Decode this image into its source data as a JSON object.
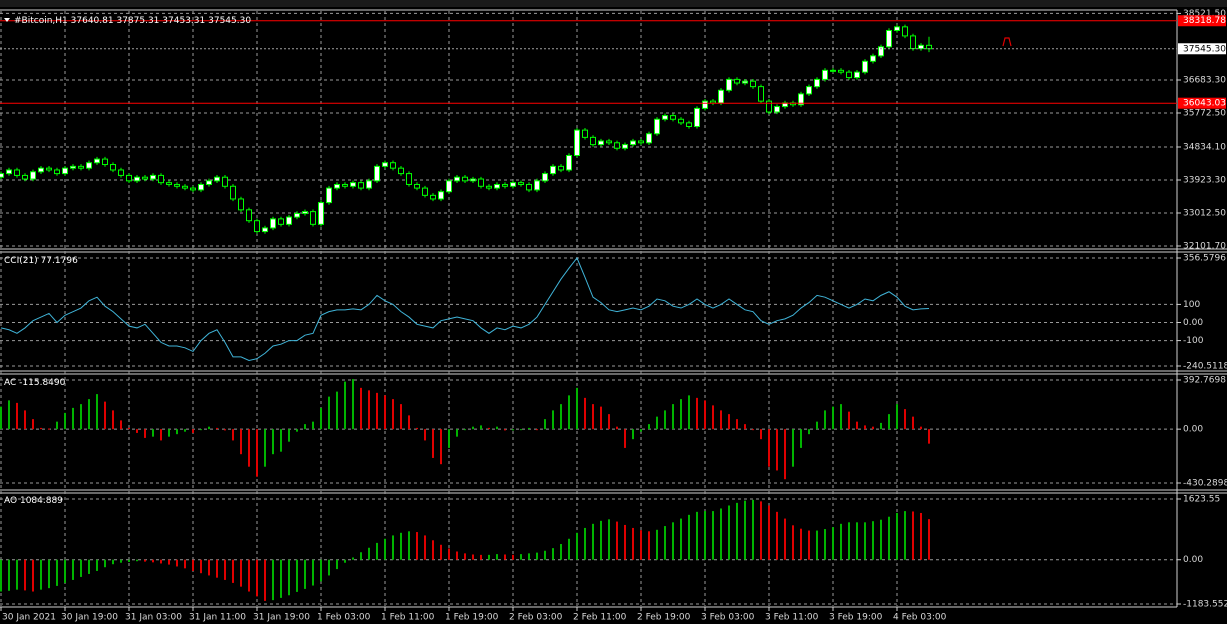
{
  "chart_data": [
    {
      "type": "candlestick",
      "title": "#Bitcoin,H1",
      "categories": [
        "30 Jan 2021",
        null,
        null,
        null,
        null,
        null,
        null,
        null,
        "30 Jan 19:00",
        null,
        null,
        null,
        null,
        null,
        null,
        null,
        "31 Jan 03:00",
        null,
        null,
        null,
        null,
        null,
        null,
        null,
        "31 Jan 11:00",
        null,
        null,
        null,
        null,
        null,
        null,
        null,
        "31 Jan 19:00",
        null,
        null,
        null,
        null,
        null,
        null,
        null,
        "1 Feb 03:00",
        null,
        null,
        null,
        null,
        null,
        null,
        null,
        "1 Feb 11:00",
        null,
        null,
        null,
        null,
        null,
        null,
        null,
        "1 Feb 19:00",
        null,
        null,
        null,
        null,
        null,
        null,
        null,
        "2 Feb 03:00",
        null,
        null,
        null,
        null,
        null,
        null,
        null,
        "2 Feb 11:00",
        null,
        null,
        null,
        null,
        null,
        null,
        null,
        "2 Feb 19:00",
        null,
        null,
        null,
        null,
        null,
        null,
        null,
        "3 Feb 03:00",
        null,
        null,
        null,
        null,
        null,
        null,
        null,
        "3 Feb 11:00",
        null,
        null,
        null,
        null,
        null,
        null,
        null,
        "3 Feb 19:00",
        null,
        null,
        null,
        null,
        null,
        null,
        null,
        "4 Feb 03:00",
        null,
        null,
        null,
        null
      ],
      "open": [
        34000,
        34100,
        34200,
        34050,
        33950,
        34150,
        34250,
        34200,
        34100,
        34250,
        34300,
        34250,
        34400,
        34500,
        34350,
        34200,
        34050,
        33900,
        34000,
        33950,
        34050,
        33850,
        33800,
        33750,
        33700,
        33650,
        33800,
        33900,
        34000,
        33750,
        33400,
        33100,
        32800,
        32500,
        32600,
        32850,
        32700,
        32900,
        33000,
        33050,
        32700,
        33300,
        33700,
        33800,
        33750,
        33850,
        33700,
        33900,
        34300,
        34400,
        34250,
        34100,
        33800,
        33700,
        33500,
        33400,
        33600,
        33900,
        34000,
        33900,
        33950,
        33750,
        33700,
        33800,
        33750,
        33850,
        33800,
        33650,
        33900,
        34100,
        34300,
        34200,
        34600,
        35300,
        35100,
        34900,
        35000,
        34950,
        34800,
        34900,
        35000,
        34950,
        35200,
        35600,
        35700,
        35600,
        35500,
        35400,
        35900,
        36100,
        36050,
        36400,
        36700,
        36600,
        36650,
        36500,
        36100,
        35800,
        35950,
        36050,
        36000,
        36300,
        36500,
        36700,
        36950,
        36950,
        36900,
        36750,
        36900,
        37200,
        37350,
        37600,
        38050,
        38150,
        37900,
        37550,
        37640.81
      ],
      "high": [
        34160,
        34260,
        34260,
        34110,
        34210,
        34310,
        34310,
        34260,
        34310,
        34360,
        34360,
        34460,
        34560,
        34560,
        34410,
        34260,
        34110,
        34060,
        34060,
        34110,
        34110,
        33910,
        33860,
        33810,
        33760,
        33860,
        33960,
        34060,
        34060,
        33810,
        33460,
        33160,
        32860,
        32660,
        32910,
        32910,
        32960,
        33060,
        33110,
        33110,
        33360,
        33760,
        33860,
        33860,
        33910,
        33910,
        33960,
        34360,
        34460,
        34460,
        34310,
        34160,
        33860,
        33760,
        33560,
        33660,
        33960,
        34060,
        34060,
        34010,
        34010,
        33810,
        33860,
        33860,
        33910,
        33910,
        33860,
        33960,
        34160,
        34360,
        34360,
        34660,
        35360,
        35360,
        35160,
        35060,
        35060,
        35010,
        34960,
        35060,
        35060,
        35260,
        35660,
        35760,
        35760,
        35660,
        35560,
        35960,
        36160,
        36160,
        36460,
        36760,
        36760,
        36710,
        36710,
        36560,
        36160,
        36010,
        36110,
        36110,
        36360,
        36560,
        36760,
        37010,
        37010,
        37010,
        36960,
        36960,
        37260,
        37410,
        37660,
        38110,
        38210,
        38210,
        37960,
        37700,
        37875.31
      ],
      "low": [
        33940,
        34040,
        33990,
        33890,
        33890,
        34090,
        34140,
        34040,
        34040,
        34190,
        34190,
        34190,
        34340,
        34290,
        34140,
        33990,
        33840,
        33840,
        33890,
        33890,
        33790,
        33740,
        33690,
        33640,
        33590,
        33590,
        33740,
        33840,
        33690,
        33340,
        33040,
        32740,
        32440,
        32440,
        32540,
        32640,
        32640,
        32840,
        32940,
        32640,
        32640,
        33240,
        33640,
        33690,
        33690,
        33640,
        33640,
        33840,
        34240,
        34190,
        34040,
        33740,
        33640,
        33440,
        33340,
        33340,
        33540,
        33840,
        33840,
        33840,
        33690,
        33640,
        33640,
        33690,
        33690,
        33740,
        33590,
        33590,
        33840,
        34040,
        34140,
        34140,
        34540,
        35040,
        34840,
        34840,
        34890,
        34740,
        34740,
        34840,
        34890,
        34890,
        35140,
        35540,
        35540,
        35440,
        35340,
        35340,
        35840,
        35990,
        35990,
        36340,
        36540,
        36540,
        36440,
        36040,
        35740,
        35740,
        35890,
        35940,
        35940,
        36240,
        36440,
        36640,
        36890,
        36840,
        36690,
        36690,
        36840,
        37140,
        37290,
        37540,
        37990,
        37840,
        37490,
        37490,
        37453.31
      ],
      "close": [
        34100,
        34200,
        34050,
        33950,
        34150,
        34250,
        34200,
        34100,
        34250,
        34300,
        34250,
        34400,
        34500,
        34350,
        34200,
        34050,
        33900,
        34000,
        33950,
        34050,
        33850,
        33800,
        33750,
        33700,
        33650,
        33800,
        33900,
        34000,
        33750,
        33400,
        33100,
        32800,
        32500,
        32600,
        32850,
        32700,
        32900,
        33000,
        33050,
        32700,
        33300,
        33700,
        33800,
        33750,
        33850,
        33700,
        33900,
        34300,
        34400,
        34250,
        34100,
        33800,
        33700,
        33500,
        33400,
        33600,
        33900,
        34000,
        33900,
        33950,
        33750,
        33700,
        33800,
        33750,
        33850,
        33800,
        33650,
        33900,
        34100,
        34300,
        34200,
        34600,
        35300,
        35100,
        34900,
        35000,
        34950,
        34800,
        34900,
        35000,
        34950,
        35200,
        35600,
        35700,
        35600,
        35500,
        35400,
        35900,
        36100,
        36050,
        36400,
        36700,
        36600,
        36650,
        36500,
        36100,
        35800,
        35950,
        36050,
        36000,
        36300,
        36500,
        36700,
        36950,
        36950,
        36900,
        36750,
        36900,
        37200,
        37350,
        37600,
        38050,
        38150,
        37900,
        37550,
        37640.81,
        37545.3
      ],
      "current_price": {
        "value": 37545.3,
        "label": "37545.30"
      },
      "levels": [
        {
          "value": 38318.78,
          "label": "38318.78",
          "color": "#ff0000"
        },
        {
          "value": 36043.03,
          "label": "36043.03",
          "color": "#ff0000"
        }
      ],
      "color": "#00ff00",
      "up_fill": "#ffffff",
      "down_fill": "#000000",
      "ylim": [
        32046.5,
        38587.7
      ],
      "yticks": [
        {
          "value": 38521.5,
          "label": "38521.50"
        },
        {
          "value": 36683.3,
          "label": "36683.30"
        },
        {
          "value": 35772.5,
          "label": "35772.50"
        },
        {
          "value": 34834.1,
          "label": "34834.10"
        },
        {
          "value": 33923.3,
          "label": "33923.30"
        },
        {
          "value": 33012.5,
          "label": "33012.50"
        },
        {
          "value": 32101.7,
          "label": "32101.70"
        }
      ],
      "grid": true
    },
    {
      "type": "line",
      "title": "CCI(21)",
      "color": "#40b4d8",
      "values": [
        -30,
        -40,
        -60,
        -30,
        10,
        30,
        50,
        0,
        40,
        60,
        80,
        120,
        140,
        90,
        60,
        20,
        -20,
        -30,
        -10,
        -60,
        -110,
        -130,
        -130,
        -140,
        -160,
        -100,
        -60,
        -40,
        -110,
        -190,
        -190,
        -210,
        -200,
        -170,
        -130,
        -120,
        -100,
        -100,
        -70,
        -60,
        40,
        60,
        70,
        70,
        75,
        70,
        100,
        150,
        120,
        100,
        60,
        30,
        -10,
        -20,
        -30,
        10,
        20,
        30,
        20,
        10,
        -30,
        -60,
        -30,
        -40,
        -20,
        -30,
        -10,
        30,
        100,
        170,
        240,
        300,
        356.58,
        250,
        140,
        110,
        70,
        60,
        70,
        80,
        70,
        90,
        130,
        120,
        90,
        80,
        100,
        130,
        100,
        80,
        100,
        130,
        100,
        70,
        60,
        10,
        -10,
        10,
        20,
        40,
        80,
        110,
        150,
        140,
        120,
        100,
        80,
        100,
        130,
        120,
        150,
        170,
        140,
        90,
        70,
        75,
        77.1796
      ],
      "ylim": [
        -240.5118,
        356.5796
      ],
      "yticks": [
        356.5796,
        100,
        {
          "value": 0,
          "label": "0.00"
        },
        -100,
        -240.5118
      ],
      "grid": true
    },
    {
      "type": "bar",
      "title": "AC",
      "current_label": "-115.8490",
      "up_color": "#00b400",
      "down_color": "#e00000",
      "values": [
        180,
        230,
        210,
        150,
        80,
        10,
        5,
        60,
        130,
        170,
        200,
        240,
        280,
        220,
        150,
        70,
        10,
        -30,
        -70,
        -60,
        -90,
        -60,
        -40,
        -20,
        -30,
        0,
        20,
        10,
        -10,
        -90,
        -200,
        -300,
        -380,
        -300,
        -200,
        -180,
        -100,
        -20,
        40,
        60,
        170,
        260,
        300,
        380,
        400,
        330,
        310,
        290,
        270,
        240,
        200,
        110,
        10,
        -90,
        -230,
        -280,
        -150,
        -60,
        0,
        20,
        30,
        10,
        20,
        -10,
        -10,
        0,
        10,
        0,
        80,
        150,
        200,
        270,
        330,
        250,
        200,
        180,
        120,
        20,
        -150,
        -80,
        -20,
        40,
        100,
        150,
        200,
        240,
        270,
        250,
        230,
        190,
        150,
        120,
        80,
        40,
        0,
        -80,
        -300,
        -330,
        -400,
        -300,
        -150,
        -40,
        60,
        150,
        180,
        200,
        140,
        60,
        30,
        20,
        50,
        120,
        200,
        160,
        100,
        20,
        -115.849
      ],
      "ylim": [
        -430.2898,
        392.7698
      ],
      "yticks": [
        392.7698,
        {
          "value": 0,
          "label": "0.00"
        },
        -430.2898
      ],
      "grid": true
    },
    {
      "type": "bar",
      "title": "AO",
      "up_color": "#00b400",
      "down_color": "#e00000",
      "values": [
        -850,
        -830,
        -800,
        -820,
        -850,
        -800,
        -760,
        -700,
        -620,
        -540,
        -460,
        -380,
        -300,
        -200,
        -120,
        -80,
        -60,
        -40,
        -50,
        -70,
        -100,
        -130,
        -180,
        -230,
        -300,
        -360,
        -420,
        -480,
        -540,
        -620,
        -720,
        -850,
        -980,
        -1100,
        -1080,
        -1020,
        -950,
        -860,
        -780,
        -690,
        -580,
        -420,
        -250,
        -80,
        60,
        200,
        320,
        450,
        560,
        650,
        720,
        760,
        740,
        650,
        520,
        400,
        300,
        220,
        170,
        140,
        130,
        130,
        150,
        140,
        130,
        150,
        170,
        190,
        240,
        310,
        420,
        560,
        720,
        850,
        960,
        1040,
        1080,
        1020,
        930,
        850,
        790,
        760,
        800,
        900,
        1000,
        1100,
        1200,
        1280,
        1300,
        1300,
        1370,
        1450,
        1520,
        1580,
        1600,
        1560,
        1450,
        1280,
        1100,
        920,
        830,
        780,
        780,
        820,
        870,
        960,
        1000,
        1000,
        1000,
        1030,
        1070,
        1150,
        1250,
        1300,
        1290,
        1250,
        1084.889
      ],
      "ylim": [
        -1183.552,
        1623.55
      ],
      "yticks": [
        1623.55,
        {
          "value": 0,
          "label": "0.00"
        },
        -1183.552
      ],
      "grid": true
    }
  ]
}
